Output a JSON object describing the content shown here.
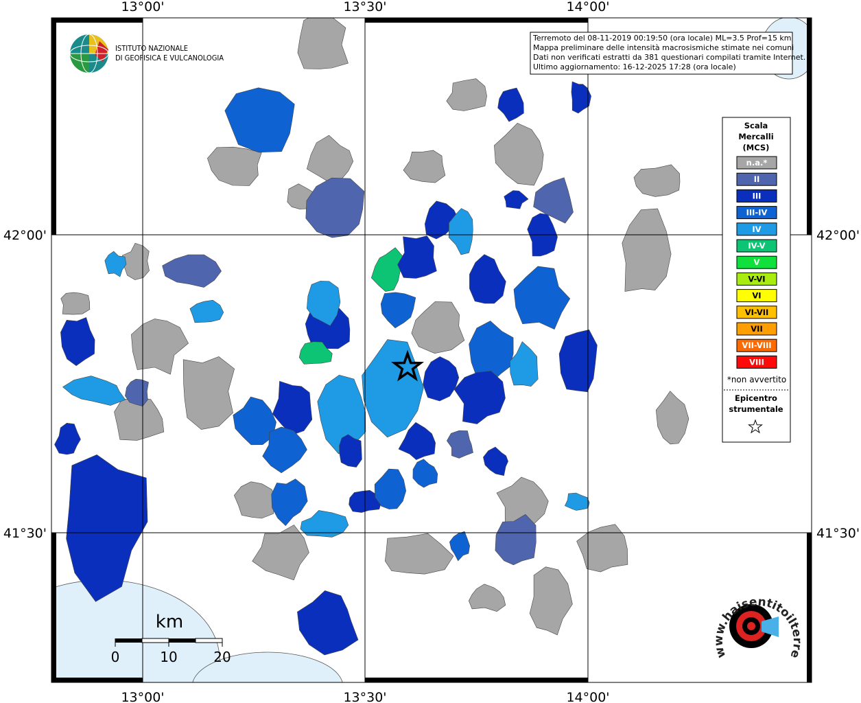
{
  "header": {
    "institute": [
      "ISTITUTO NAZIONALE",
      "DI GEOFISICA E VULCANOLOGIA"
    ]
  },
  "info": [
    "Terremoto del 08-11-2019 00:19:50 (ora locale) ML=3.5 Prof=15 km",
    "Mappa preliminare delle intensità macrosismiche stimate nei comuni",
    "Dati non verificati estratti da 381 questionari compilati tramite Internet.",
    "Ultimo aggiornamento: 16-12-2025 17:28 (ora locale)"
  ],
  "longitude_labels": [
    "13°00'",
    "13°30'",
    "14°00'"
  ],
  "latitude_labels": [
    "42°00'",
    "41°30'"
  ],
  "legend": {
    "title": [
      "Scala",
      "Mercalli",
      "(MCS)"
    ],
    "items": [
      {
        "label": "n.a.*",
        "color": "#a6a6a6"
      },
      {
        "label": "II",
        "color": "#4f66ae"
      },
      {
        "label": "III",
        "color": "#0a2fbd"
      },
      {
        "label": "III-IV",
        "color": "#0f62d2"
      },
      {
        "label": "IV",
        "color": "#1f9be6"
      },
      {
        "label": "IV-V",
        "color": "#0cc473"
      },
      {
        "label": "V",
        "color": "#10e03c"
      },
      {
        "label": "V-VI",
        "color": "#a8ec10"
      },
      {
        "label": "VI",
        "color": "#ffff00"
      },
      {
        "label": "VI-VII",
        "color": "#ffc000"
      },
      {
        "label": "VII",
        "color": "#ff9e00"
      },
      {
        "label": "VII-VIII",
        "color": "#ff6a00"
      },
      {
        "label": "VIII",
        "color": "#ff0a0a"
      }
    ],
    "note": "*non avvertito",
    "epicenter": [
      "Epicentro",
      "strumentale"
    ]
  },
  "scale_bar": {
    "unit": "km",
    "ticks": [
      "0",
      "10",
      "20"
    ]
  },
  "logo": "www.haisentitoilterremoto.it"
}
